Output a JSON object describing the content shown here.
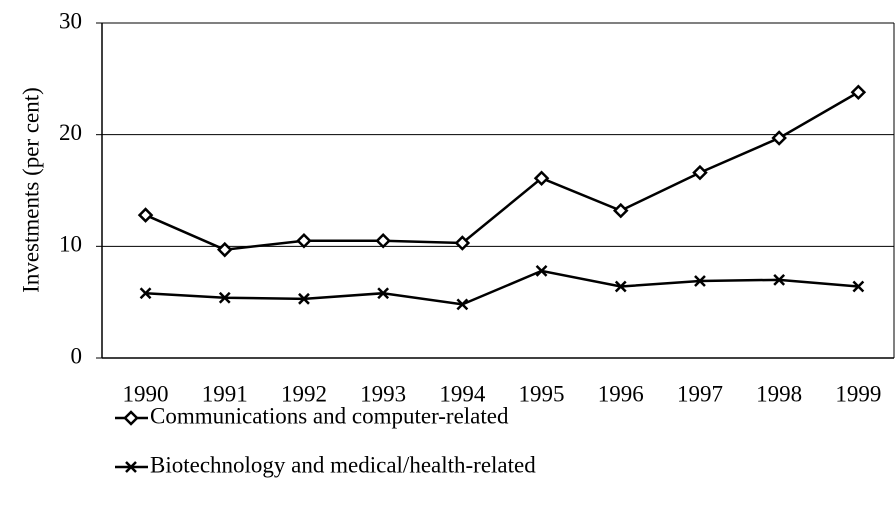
{
  "chart_data": {
    "type": "line",
    "y_label": "Investments (per cent)",
    "categories": [
      "1990",
      "1991",
      "1992",
      "1993",
      "1994",
      "1995",
      "1996",
      "1997",
      "1998",
      "1999"
    ],
    "series": [
      {
        "name": "Communications and computer-related",
        "color": "#000000",
        "marker": "diamond",
        "values": [
          12.8,
          9.7,
          10.5,
          10.5,
          10.3,
          16.1,
          13.2,
          16.6,
          19.7,
          23.8
        ]
      },
      {
        "name": "Biotechnology and medical/health-related",
        "color": "#000000",
        "marker": "x",
        "values": [
          5.8,
          5.4,
          5.3,
          5.8,
          4.8,
          7.8,
          6.4,
          6.9,
          7.0,
          6.4
        ]
      }
    ],
    "ylim": [
      0,
      30
    ],
    "yticks": [
      0,
      10,
      20,
      30
    ],
    "grid": true
  }
}
